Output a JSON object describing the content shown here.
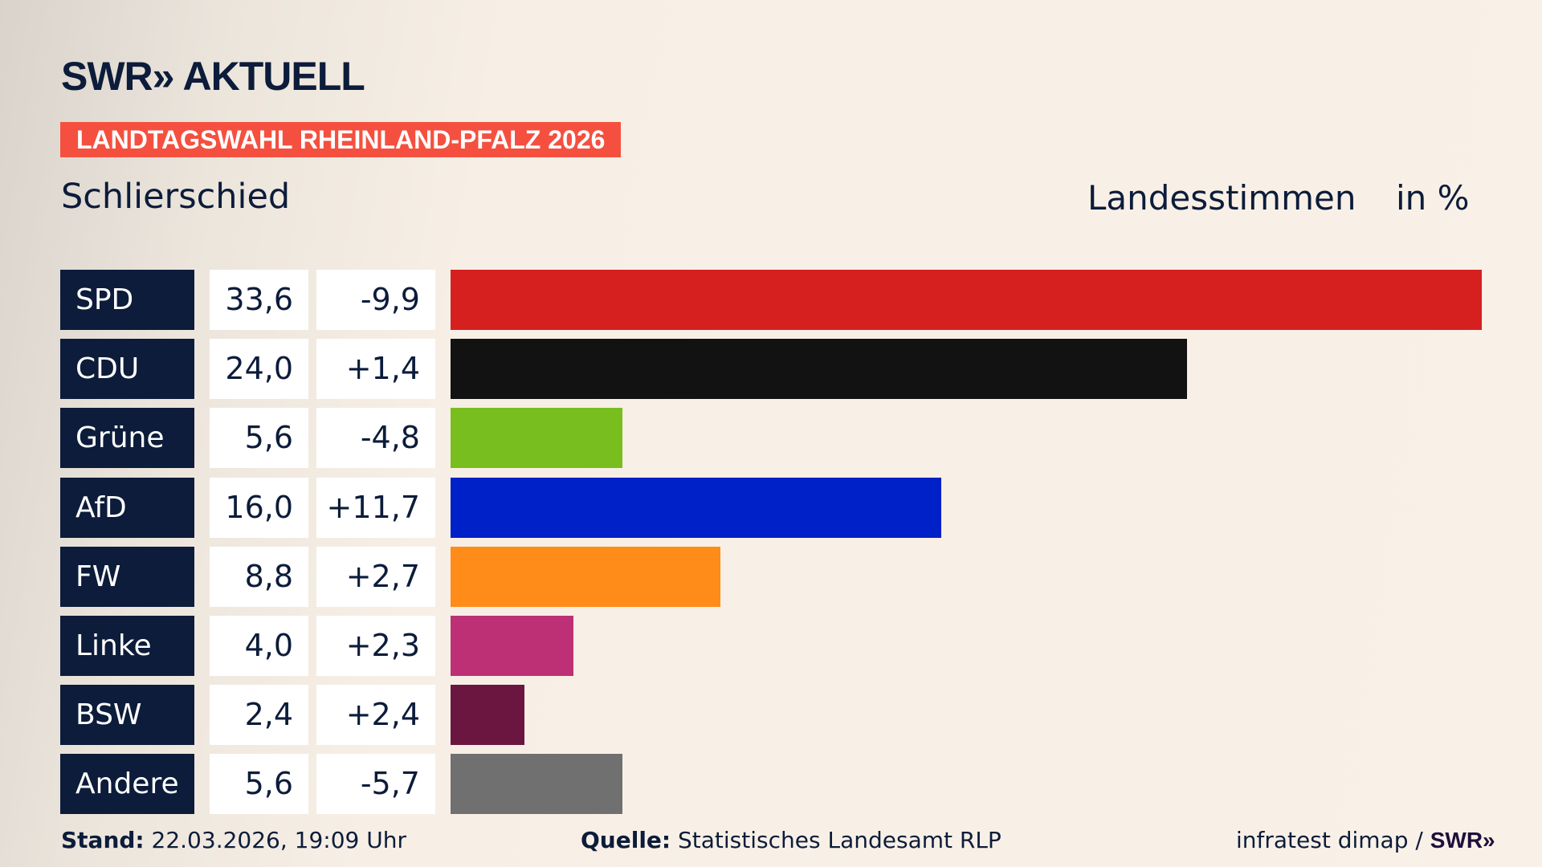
{
  "header": {
    "logo": "SWR» AKTUELL",
    "banner": "LANDTAGSWAHL RHEINLAND-PFALZ 2026",
    "region": "Schlierschied",
    "measure": "Landesstimmen",
    "unit": "in %"
  },
  "chart_data": {
    "type": "bar",
    "orientation": "horizontal",
    "categories": [
      "SPD",
      "CDU",
      "Grüne",
      "AfD",
      "FW",
      "Linke",
      "BSW",
      "Andere"
    ],
    "values": [
      33.6,
      24.0,
      5.6,
      16.0,
      8.8,
      4.0,
      2.4,
      5.6
    ],
    "value_labels": [
      "33,6",
      "24,0",
      "5,6",
      "16,0",
      "8,8",
      "4,0",
      "2,4",
      "5,6"
    ],
    "diff_labels": [
      "-9,9",
      "+1,4",
      "-4,8",
      "+11,7",
      "+2,7",
      "+2,3",
      "+2,4",
      "-5,7"
    ],
    "diffs": [
      -9.9,
      1.4,
      -4.8,
      11.7,
      2.7,
      2.3,
      2.4,
      -5.7
    ],
    "colors": [
      "#d62020",
      "#121212",
      "#78be1e",
      "#0020c8",
      "#ff8c19",
      "#bd3075",
      "#6a1640",
      "#707070"
    ],
    "xlim": [
      0,
      33.6
    ],
    "grid": false
  },
  "footer": {
    "stand_label": "Stand:",
    "stand_value": "22.03.2026, 19:09 Uhr",
    "source_label": "Quelle:",
    "source_value": "Statistisches Landesamt RLP",
    "credit": "infratest dimap /",
    "credit_logo": "SWR»"
  }
}
